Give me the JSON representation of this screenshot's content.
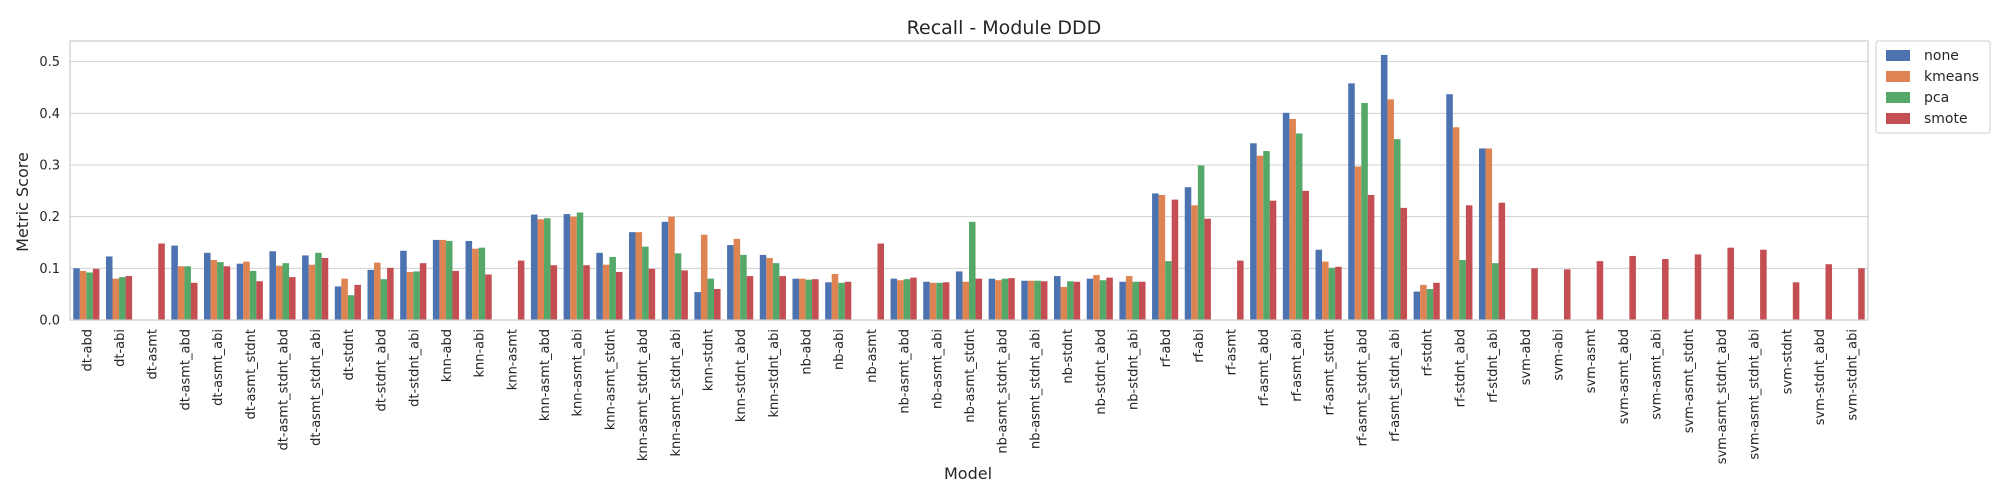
{
  "chart_data": {
    "type": "bar",
    "title": "Recall - Module DDD",
    "xlabel": "Model",
    "ylabel": "Metric Score",
    "ylim": [
      0,
      0.54
    ],
    "yticks": [
      "0.0",
      "0.1",
      "0.2",
      "0.3",
      "0.4",
      "0.5"
    ],
    "grid": "horizontal",
    "legend_position": "outside-top-right",
    "categories": [
      "dt-abd",
      "dt-abi",
      "dt-asmt",
      "dt-asmt_abd",
      "dt-asmt_abi",
      "dt-asmt_stdnt",
      "dt-asmt_stdnt_abd",
      "dt-asmt_stdnt_abi",
      "dt-stdnt",
      "dt-stdnt_abd",
      "dt-stdnt_abi",
      "knn-abd",
      "knn-abi",
      "knn-asmt",
      "knn-asmt_abd",
      "knn-asmt_abi",
      "knn-asmt_stdnt",
      "knn-asmt_stdnt_abd",
      "knn-asmt_stdnt_abi",
      "knn-stdnt",
      "knn-stdnt_abd",
      "knn-stdnt_abi",
      "nb-abd",
      "nb-abi",
      "nb-asmt",
      "nb-asmt_abd",
      "nb-asmt_abi",
      "nb-asmt_stdnt",
      "nb-asmt_stdnt_abd",
      "nb-asmt_stdnt_abi",
      "nb-stdnt",
      "nb-stdnt_abd",
      "nb-stdnt_abi",
      "rf-abd",
      "rf-abi",
      "rf-asmt",
      "rf-asmt_abd",
      "rf-asmt_abi",
      "rf-asmt_stdnt",
      "rf-asmt_stdnt_abd",
      "rf-asmt_stdnt_abi",
      "rf-stdnt",
      "rf-stdnt_abd",
      "rf-stdnt_abi",
      "svm-abd",
      "svm-abi",
      "svm-asmt",
      "svm-asmt_abd",
      "svm-asmt_abi",
      "svm-asmt_stdnt",
      "svm-asmt_stdnt_abd",
      "svm-asmt_stdnt_abi",
      "svm-stdnt",
      "svm-stdnt_abd",
      "svm-stdnt_abi"
    ],
    "series": [
      {
        "name": "none",
        "color": "#4c72b0",
        "values": [
          0.1,
          0.123,
          0,
          0.144,
          0.13,
          0.109,
          0.133,
          0.125,
          0.065,
          0.097,
          0.134,
          0.155,
          0.153,
          0,
          0.204,
          0.205,
          0.13,
          0.17,
          0.19,
          0.054,
          0.145,
          0.126,
          0.08,
          0.073,
          0,
          0.08,
          0.074,
          0.094,
          0.08,
          0.076,
          0.085,
          0.08,
          0.074,
          0.245,
          0.257,
          0,
          0.342,
          0.401,
          0.136,
          0.458,
          0.513,
          0.055,
          0.437,
          0.332,
          0,
          0,
          0,
          0,
          0,
          0,
          0,
          0,
          0,
          0,
          0
        ]
      },
      {
        "name": "kmeans",
        "color": "#dd8452",
        "values": [
          0.095,
          0.08,
          0,
          0.104,
          0.116,
          0.113,
          0.105,
          0.107,
          0.08,
          0.111,
          0.093,
          0.155,
          0.138,
          0,
          0.195,
          0.2,
          0.107,
          0.17,
          0.2,
          0.165,
          0.157,
          0.12,
          0.08,
          0.089,
          0,
          0.077,
          0.072,
          0.074,
          0.077,
          0.076,
          0.064,
          0.087,
          0.085,
          0.242,
          0.222,
          0,
          0.318,
          0.389,
          0.113,
          0.297,
          0.427,
          0.068,
          0.373,
          0.332,
          0,
          0,
          0,
          0,
          0,
          0,
          0,
          0,
          0,
          0,
          0
        ]
      },
      {
        "name": "pca",
        "color": "#55a868",
        "values": [
          0.092,
          0.083,
          0,
          0.104,
          0.112,
          0.095,
          0.11,
          0.13,
          0.048,
          0.079,
          0.094,
          0.153,
          0.14,
          0,
          0.197,
          0.208,
          0.122,
          0.142,
          0.129,
          0.08,
          0.126,
          0.11,
          0.078,
          0.072,
          0,
          0.079,
          0.072,
          0.19,
          0.08,
          0.076,
          0.075,
          0.077,
          0.074,
          0.114,
          0.299,
          0,
          0.327,
          0.361,
          0.101,
          0.42,
          0.35,
          0.06,
          0.116,
          0.11,
          0,
          0,
          0,
          0,
          0,
          0,
          0,
          0,
          0,
          0,
          0
        ]
      },
      {
        "name": "smote",
        "color": "#c44e52",
        "values": [
          0.099,
          0.085,
          0.148,
          0.072,
          0.104,
          0.075,
          0.083,
          0.12,
          0.068,
          0.101,
          0.11,
          0.095,
          0.088,
          0.115,
          0.106,
          0.106,
          0.093,
          0.099,
          0.096,
          0.06,
          0.085,
          0.085,
          0.079,
          0.074,
          0.148,
          0.082,
          0.073,
          0.08,
          0.081,
          0.075,
          0.074,
          0.082,
          0.074,
          0.233,
          0.196,
          0.115,
          0.231,
          0.25,
          0.103,
          0.242,
          0.217,
          0.072,
          0.222,
          0.227,
          0.1,
          0.098,
          0.114,
          0.124,
          0.118,
          0.127,
          0.14,
          0.136,
          0.073,
          0.108,
          0.1
        ]
      }
    ]
  }
}
